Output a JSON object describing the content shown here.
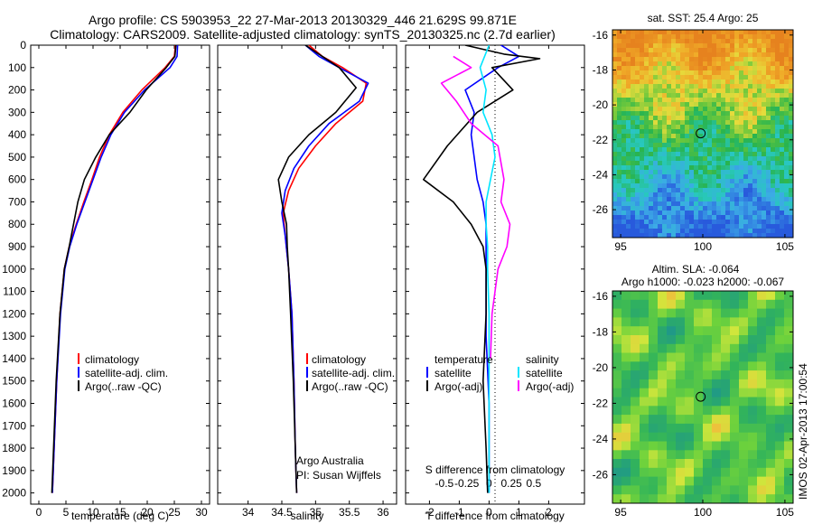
{
  "header": {
    "line1": "Argo profile: CS 5903953_22 27-Mar-2013 20130329_446 21.629S 99.871E",
    "line2": "Climatology: CARS2009. Satellite-adjusted climatology: synTS_20130325.nc (2.7d earlier)"
  },
  "colors": {
    "climatology": "#ff0000",
    "satellite": "#0000ff",
    "argo": "#000000",
    "sal_satellite": "#00e5ff",
    "sal_argo": "#ff00ff"
  },
  "depth_axis": {
    "ylim": [
      0,
      2050
    ],
    "ticks": [
      0,
      100,
      200,
      300,
      400,
      500,
      600,
      700,
      800,
      900,
      1000,
      1100,
      1200,
      1300,
      1400,
      1500,
      1600,
      1700,
      1800,
      1900,
      2000
    ]
  },
  "legend": {
    "climatology": "climatology",
    "satellite_clim": "satellite-adj. clim.",
    "argo_raw": "Argo(..raw -QC)"
  },
  "diff_legend": {
    "temperature": "temperature",
    "salinity": "salinity",
    "satellite": "satellite",
    "argo_adj": "Argo(-adj)"
  },
  "credit": {
    "line1": "Argo Australia",
    "line2": "PI: Susan Wijffels"
  },
  "maps": {
    "sst_title": "sat. SST: 25.4 Argo: 25",
    "sla_title1": "Altim. SLA: -0.064",
    "sla_title2": "Argo h1000: -0.023 h2000: -0.067",
    "yticks": [
      -16,
      -18,
      -20,
      -22,
      -24,
      -26
    ],
    "xticks": [
      95,
      100,
      105
    ],
    "xlim": [
      94.5,
      105.5
    ],
    "ylim": [
      -27.6,
      -15.7
    ],
    "float_lon": 99.871,
    "float_lat": -21.629
  },
  "side_label": "IMOS 02-Apr-2013 17:00:54",
  "chart_data": [
    {
      "type": "line",
      "name": "temperature",
      "xlabel": "temperature (deg C)",
      "xlim": [
        -1.5,
        31.5
      ],
      "xticks": [
        0,
        5,
        10,
        15,
        20,
        25,
        30
      ],
      "series": [
        {
          "name": "climatology",
          "color_key": "climatology",
          "x": [
            25.2,
            25.0,
            23.3,
            19.0,
            15.5,
            13.0,
            11.2,
            9.8,
            8.3,
            6.9,
            5.6,
            4.7,
            3.9,
            3.3,
            2.5
          ],
          "y": [
            0,
            50,
            100,
            200,
            300,
            400,
            500,
            600,
            700,
            800,
            900,
            1000,
            1200,
            1500,
            2000
          ]
        },
        {
          "name": "satellite-adj. clim.",
          "color_key": "satellite",
          "x": [
            25.6,
            25.5,
            24.2,
            19.5,
            15.8,
            13.3,
            11.5,
            10.0,
            8.5,
            7.0,
            5.7,
            4.8,
            4.0,
            3.3,
            2.5
          ],
          "y": [
            0,
            50,
            100,
            200,
            300,
            400,
            500,
            600,
            700,
            800,
            900,
            1000,
            1200,
            1500,
            2000
          ]
        },
        {
          "name": "Argo(..raw -QC)",
          "color_key": "argo",
          "x": [
            25.3,
            25.1,
            23.5,
            19.8,
            16.8,
            13.0,
            10.5,
            8.4,
            7.2,
            6.4,
            5.6,
            4.7,
            3.9,
            3.2,
            2.4
          ],
          "y": [
            0,
            50,
            100,
            200,
            300,
            400,
            500,
            600,
            700,
            800,
            900,
            1000,
            1200,
            1500,
            2000
          ]
        }
      ]
    },
    {
      "type": "line",
      "name": "salinity",
      "xlabel": "salinity",
      "xlim": [
        33.55,
        36.2
      ],
      "xticks": [
        34,
        34.5,
        35,
        35.5,
        36
      ],
      "series": [
        {
          "name": "climatology",
          "color_key": "climatology",
          "x": [
            34.9,
            35.1,
            35.4,
            35.75,
            35.7,
            35.3,
            35.0,
            34.75,
            34.6,
            34.52,
            34.55,
            34.6,
            34.65,
            34.68,
            34.7,
            34.72
          ],
          "y": [
            0,
            50,
            100,
            170,
            250,
            350,
            450,
            550,
            650,
            750,
            850,
            1000,
            1200,
            1500,
            1800,
            2000
          ]
        },
        {
          "name": "satellite-adj. clim.",
          "color_key": "satellite",
          "x": [
            34.85,
            35.05,
            35.35,
            35.78,
            35.65,
            35.2,
            34.9,
            34.68,
            34.55,
            34.5,
            34.55,
            34.6,
            34.65,
            34.68,
            34.7,
            34.72
          ],
          "y": [
            0,
            50,
            100,
            170,
            250,
            350,
            450,
            550,
            650,
            750,
            850,
            1000,
            1200,
            1500,
            1800,
            2000
          ]
        },
        {
          "name": "Argo(..raw -QC)",
          "color_key": "argo",
          "x": [
            34.85,
            35.1,
            35.35,
            35.6,
            35.3,
            34.9,
            34.6,
            34.45,
            34.5,
            34.57,
            34.58,
            34.6,
            34.63,
            34.67,
            34.7,
            34.72
          ],
          "y": [
            0,
            50,
            100,
            190,
            300,
            400,
            500,
            600,
            700,
            800,
            900,
            1000,
            1200,
            1500,
            1800,
            2000
          ]
        }
      ]
    },
    {
      "type": "line",
      "name": "difference",
      "xlabel": "T difference from climatology",
      "xlabel2": "S difference from climatology",
      "xlim": [
        -2.8,
        3.2
      ],
      "xticks": [
        -2,
        -1,
        0,
        1,
        2
      ],
      "xticks2_pos": [
        -1.5,
        -0.75,
        0.75,
        1.5
      ],
      "xticks2_labels": [
        "-0.5",
        "-0.25",
        "0.25",
        "0.5"
      ],
      "zero_label": "0",
      "series": [
        {
          "name": "temperature satellite",
          "color_key": "satellite",
          "x": [
            0.4,
            1.0,
            0.3,
            -0.8,
            -0.5,
            -0.6,
            -0.5,
            -0.4,
            -0.2,
            -0.1,
            -0.1,
            -0.1,
            -0.1,
            0,
            0
          ],
          "y": [
            0,
            50,
            100,
            200,
            300,
            400,
            500,
            600,
            700,
            800,
            900,
            1000,
            1300,
            1600,
            2000
          ]
        },
        {
          "name": "temperature Argo(-adj)",
          "color_key": "argo",
          "x": [
            -0.8,
            0.5,
            1.7,
            0.1,
            0.8,
            -0.4,
            -1.4,
            -2.2,
            -1.2,
            -0.6,
            -0.2,
            -0.1,
            -0.1,
            -0.2,
            -0.1,
            -0.05
          ],
          "y": [
            0,
            40,
            60,
            100,
            200,
            300,
            450,
            600,
            700,
            800,
            900,
            1000,
            1200,
            1500,
            1800,
            2000
          ]
        },
        {
          "name": "salinity satellite",
          "color_key": "sal_satellite",
          "x": [
            0,
            -0.3,
            -0.1,
            -0.2,
            0.1,
            0.2,
            0.05,
            -0.1,
            -0.1,
            -0.05,
            -0.05,
            0,
            0
          ],
          "y": [
            0,
            100,
            200,
            300,
            400,
            500,
            600,
            700,
            800,
            900,
            1000,
            1200,
            2000
          ]
        },
        {
          "name": "salinity Argo(-adj)",
          "color_key": "sal_argo",
          "x": [
            -1.2,
            -0.6,
            -1.6,
            -1.1,
            -0.6,
            0.3,
            0.5,
            0.4,
            0.7,
            0.6,
            0.3,
            0.1,
            0.05
          ],
          "y": [
            50,
            100,
            170,
            250,
            350,
            450,
            600,
            700,
            800,
            900,
            1000,
            1200,
            1400
          ]
        }
      ]
    },
    {
      "type": "heatmap",
      "name": "sat-sst-map",
      "title": "sat. SST: 25.4 Argo: 25"
    },
    {
      "type": "heatmap",
      "name": "altimetry-sla-map",
      "title": "Altim. SLA: -0.064 / Argo h1000: -0.023 h2000: -0.067"
    }
  ]
}
